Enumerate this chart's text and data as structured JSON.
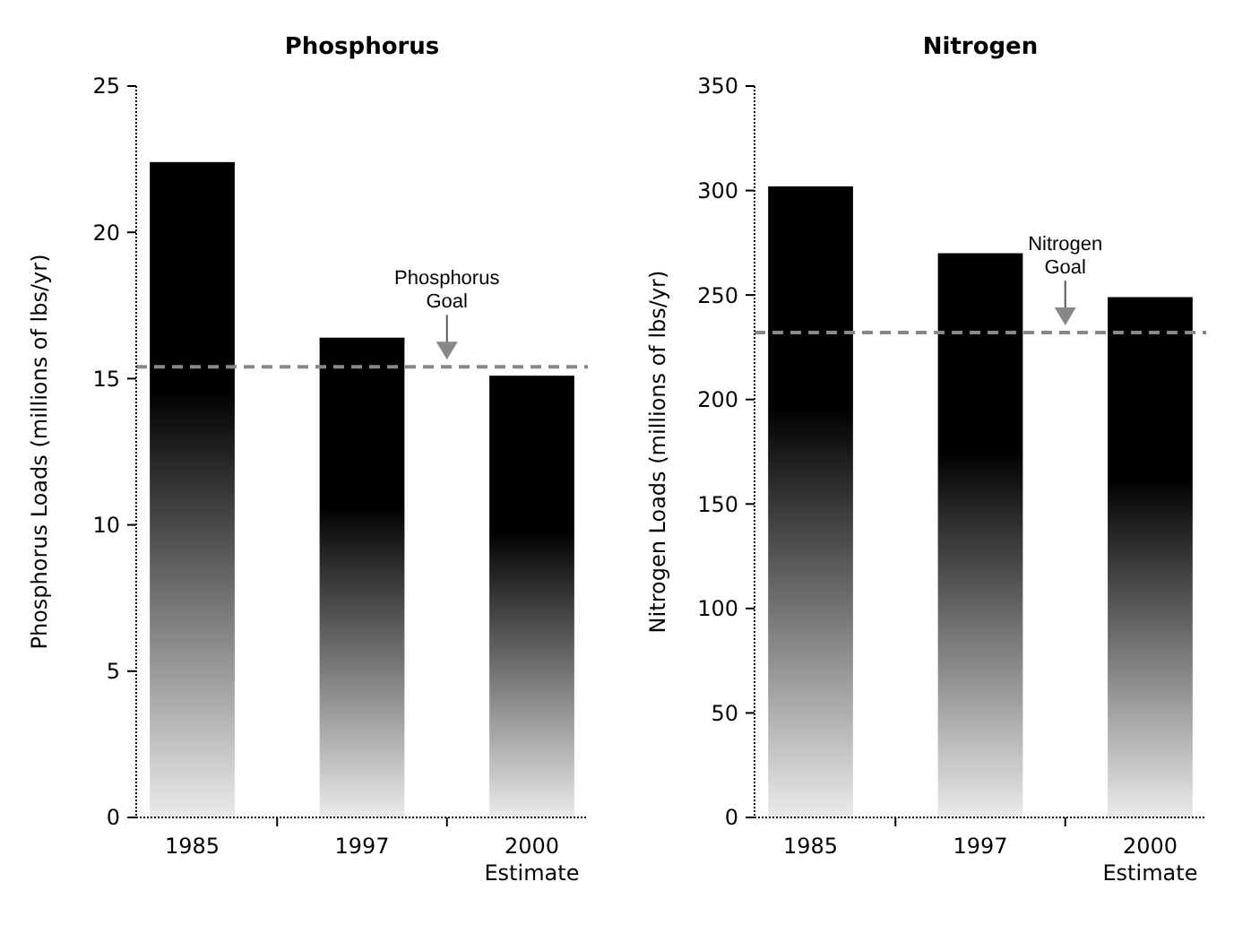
{
  "chart_data": [
    {
      "type": "bar",
      "title": "Phosphorus",
      "ylabel": "Phosphorus Loads (millions of lbs/yr)",
      "categories": [
        "1985",
        "1997",
        "2000\nEstimate"
      ],
      "values": [
        22.4,
        16.4,
        15.1
      ],
      "color": "#000000",
      "ylim": [
        0,
        25
      ],
      "yticks": [
        0,
        5,
        10,
        15,
        20,
        25
      ],
      "grid": false,
      "ref_lines": [
        {
          "axis": "y",
          "value": 15.4,
          "label": "Phosphorus\nGoal",
          "color": "#888888",
          "line_style": "dashed"
        }
      ]
    },
    {
      "type": "bar",
      "title": "Nitrogen",
      "ylabel": "Nitrogen Loads (millions of lbs/yr)",
      "categories": [
        "1985",
        "1997",
        "2000\nEstimate"
      ],
      "values": [
        302,
        270,
        249
      ],
      "color": "#000000",
      "ylim": [
        0,
        350
      ],
      "yticks": [
        0,
        50,
        100,
        150,
        200,
        250,
        300,
        350
      ],
      "grid": false,
      "ref_lines": [
        {
          "axis": "y",
          "value": 232,
          "label": "Nitrogen\nGoal",
          "color": "#888888",
          "line_style": "dashed"
        }
      ]
    }
  ]
}
